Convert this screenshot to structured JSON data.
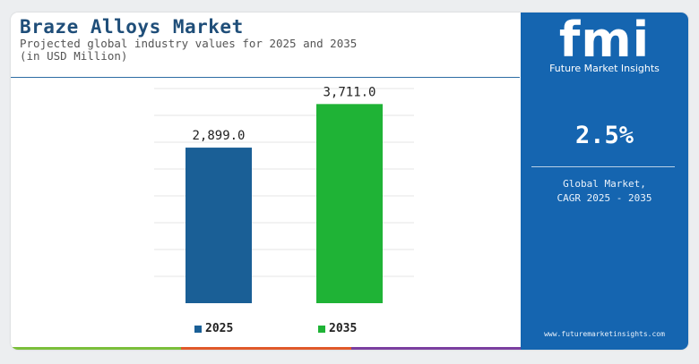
{
  "header": {
    "title": "Braze Alloys Market",
    "subtitle_line1": "Projected global industry values for 2025 and 2035",
    "subtitle_line2": "(in USD Million)"
  },
  "chart_data": {
    "type": "bar",
    "categories": [
      "2025",
      "2035"
    ],
    "values": [
      2899.0,
      3711.0
    ],
    "value_labels": [
      "2,899.0",
      "3,711.0"
    ],
    "colors": [
      "#1a5f96",
      "#1fb336"
    ],
    "title": "Braze Alloys Market",
    "xlabel": "",
    "ylabel": "",
    "ylim": [
      0,
      4000
    ],
    "grid": true,
    "legend": "bottom"
  },
  "legend": {
    "items": [
      "2025",
      "2035"
    ]
  },
  "sidebar": {
    "logo_text": "fmi",
    "logo_subtitle": "Future Market Insights",
    "cagr_value": "2.5%",
    "cagr_label_line1": "Global Market,",
    "cagr_label_line2": "CAGR 2025 - 2035",
    "website": "www.futuremarketinsights.com",
    "background_color": "#1565b0"
  },
  "bottom_strip_colors": [
    "#7bbf3a",
    "#e0592a",
    "#7b3fa0",
    "#1565b0"
  ]
}
